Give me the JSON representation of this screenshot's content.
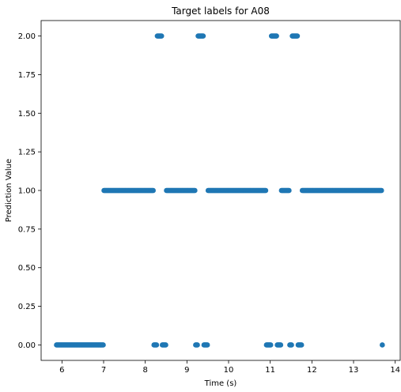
{
  "chart_data": {
    "type": "scatter",
    "title": "Target labels for A08",
    "xlabel": "Time (s)",
    "ylabel": "Prediction Value",
    "xlim": [
      5.5,
      14.12
    ],
    "ylim": [
      -0.1,
      2.1
    ],
    "x_ticks": [
      6,
      7,
      8,
      9,
      10,
      11,
      12,
      13,
      14
    ],
    "y_ticks": [
      0.0,
      0.25,
      0.5,
      0.75,
      1.0,
      1.25,
      1.5,
      1.75,
      2.0
    ],
    "y_tick_labels": [
      "0.00",
      "0.25",
      "0.50",
      "0.75",
      "1.00",
      "1.25",
      "1.50",
      "1.75",
      "2.00"
    ],
    "grid": false,
    "marker_color": "#1f77b4",
    "x_start": 5.87,
    "x_end": 13.68,
    "x_step": 0.02,
    "segments": [
      {
        "label": 0,
        "x_from": 5.87,
        "x_to": 7.0
      },
      {
        "label": 1,
        "x_from": 7.0,
        "x_to": 8.2
      },
      {
        "label": 0,
        "x_from": 8.2,
        "x_to": 8.28
      },
      {
        "label": 2,
        "x_from": 8.28,
        "x_to": 8.4
      },
      {
        "label": 0,
        "x_from": 8.4,
        "x_to": 8.5
      },
      {
        "label": 1,
        "x_from": 8.5,
        "x_to": 9.2
      },
      {
        "label": 0,
        "x_from": 9.2,
        "x_to": 9.26
      },
      {
        "label": 2,
        "x_from": 9.26,
        "x_to": 9.4
      },
      {
        "label": 0,
        "x_from": 9.4,
        "x_to": 9.5
      },
      {
        "label": 1,
        "x_from": 9.5,
        "x_to": 10.9
      },
      {
        "label": 0,
        "x_from": 10.9,
        "x_to": 11.02
      },
      {
        "label": 2,
        "x_from": 11.02,
        "x_to": 11.15
      },
      {
        "label": 0,
        "x_from": 11.15,
        "x_to": 11.25
      },
      {
        "label": 1,
        "x_from": 11.25,
        "x_to": 11.45
      },
      {
        "label": 0,
        "x_from": 11.45,
        "x_to": 11.52
      },
      {
        "label": 2,
        "x_from": 11.52,
        "x_to": 11.65
      },
      {
        "label": 0,
        "x_from": 11.65,
        "x_to": 11.75
      },
      {
        "label": 1,
        "x_from": 11.75,
        "x_to": 13.68
      }
    ]
  }
}
